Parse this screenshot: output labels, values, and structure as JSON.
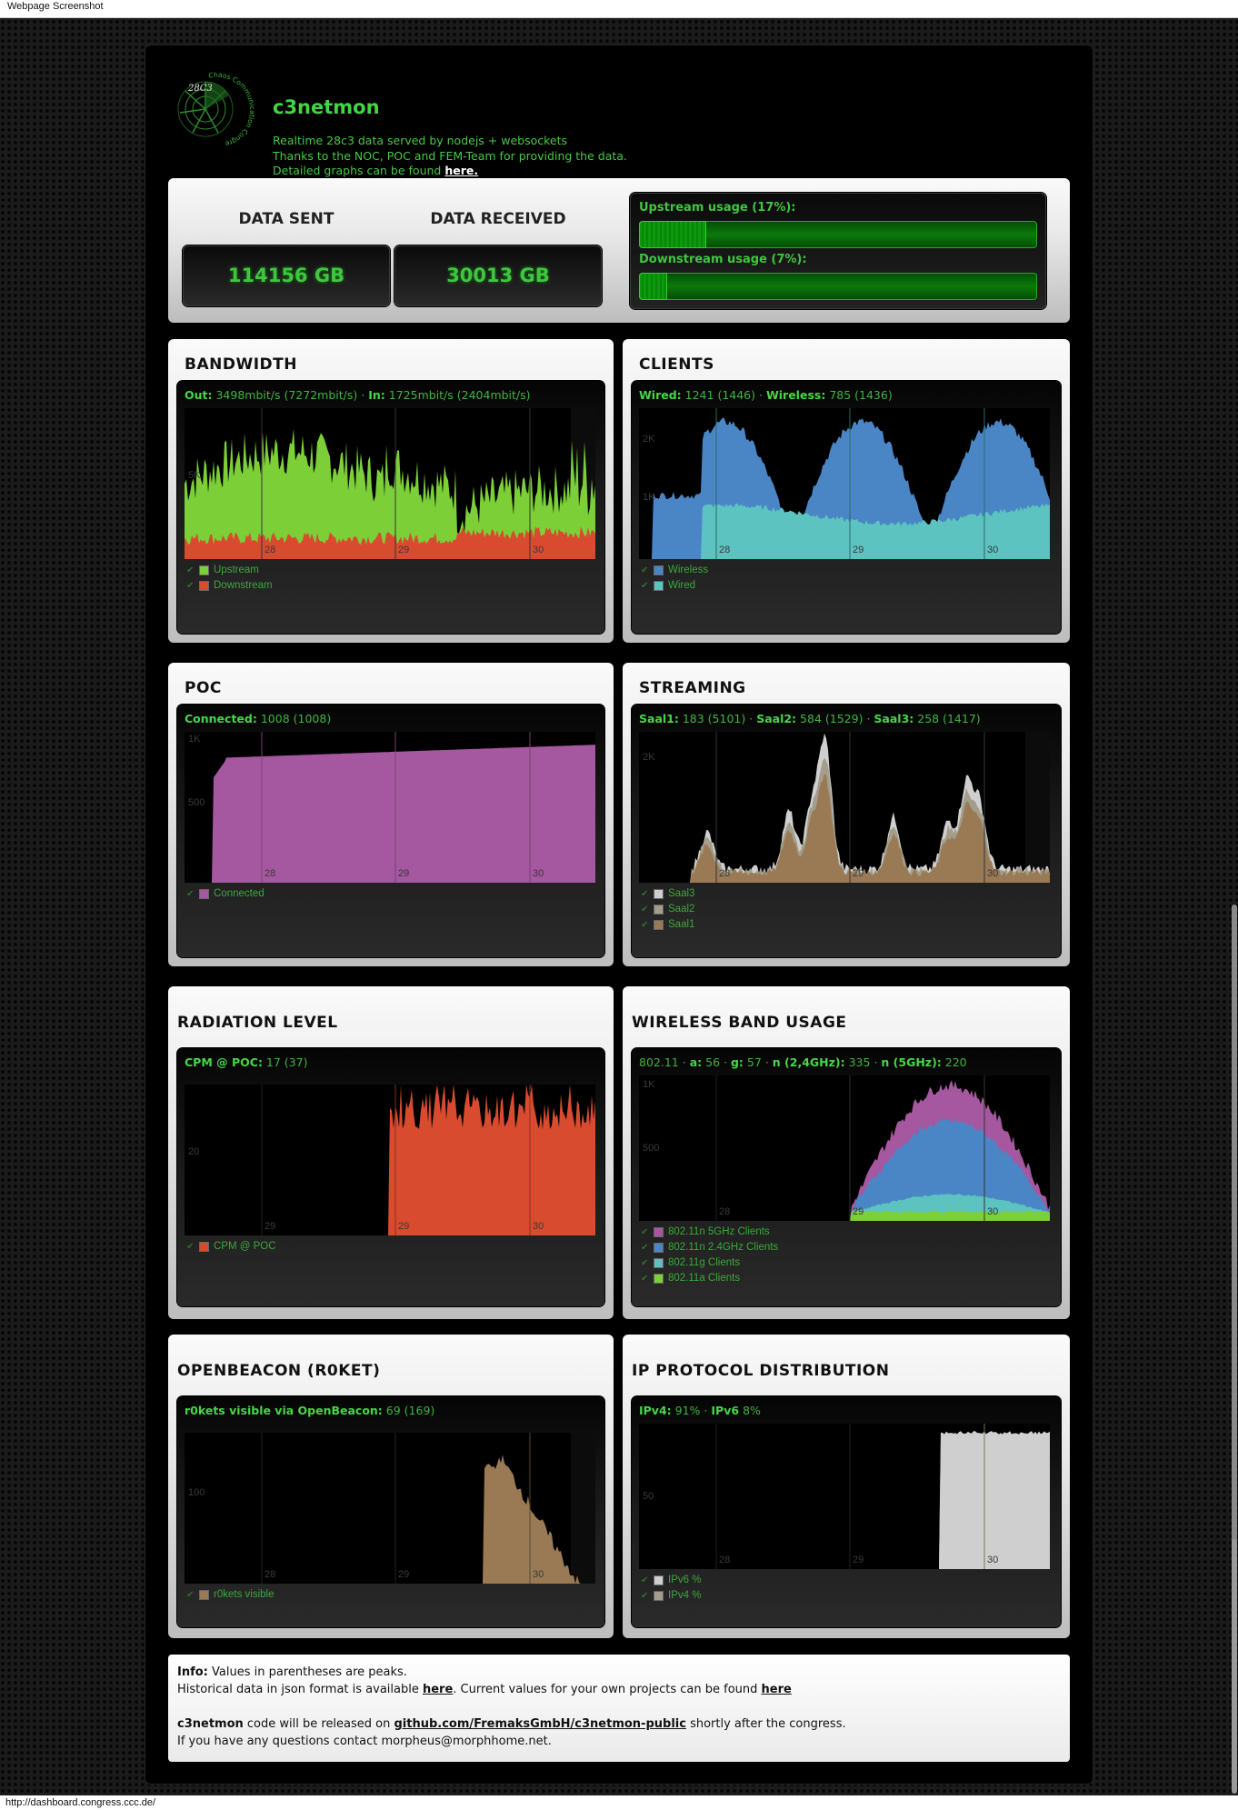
{
  "browser": {
    "top_label": "Webpage Screenshot",
    "status_url": "http://dashboard.congress.ccc.de/"
  },
  "header": {
    "logo_text": "28C3",
    "logo_ring_text": "Chaos Communication Congress behind enemy lines",
    "title": "c3netmon",
    "tagline_line1": "Realtime 28c3 data served by nodejs + websockets",
    "tagline_line2": "Thanks to the NOC, POC and FEM-Team for providing the data.",
    "tagline_line3": "Detailed graphs can be found ",
    "tagline_link": "here."
  },
  "stats": {
    "sent_label": "DATA SENT",
    "sent_value": "114156 GB",
    "received_label": "DATA RECEIVED",
    "received_value": "30013 GB",
    "upstream_label": "Upstream usage (17%):",
    "upstream_pct": 17,
    "downstream_label": "Downstream usage (7%):",
    "downstream_pct": 7
  },
  "panels": {
    "bandwidth": {
      "title": "BANDWIDTH",
      "k1": "Out:",
      "v1": "3498mbit/s (7272mbit/s)",
      "sep": "·",
      "k2": "In:",
      "v2": "1725mbit/s (2404mbit/s)",
      "y_tick": "5K",
      "x_ticks": [
        "28",
        "29",
        "30"
      ],
      "legend": [
        {
          "name": "Upstream",
          "color": "#7ccf37"
        },
        {
          "name": "Downstream",
          "color": "#d84b2f"
        }
      ]
    },
    "clients": {
      "title": "CLIENTS",
      "k1": "Wired:",
      "v1": "1241 (1446)",
      "sep": "·",
      "k2": "Wireless:",
      "v2": "785 (1436)",
      "y_ticks": [
        "2K",
        "1K"
      ],
      "x_ticks": [
        "28",
        "29",
        "30"
      ],
      "legend": [
        {
          "name": "Wireless",
          "color": "#4a86c6"
        },
        {
          "name": "Wired",
          "color": "#5cc3c0"
        }
      ]
    },
    "poc": {
      "title": "POC",
      "k1": "Connected:",
      "v1": "1008 (1008)",
      "y_ticks": [
        "1K",
        "500"
      ],
      "x_ticks": [
        "28",
        "29",
        "30"
      ],
      "legend": [
        {
          "name": "Connected",
          "color": "#a557a0"
        }
      ]
    },
    "streaming": {
      "title": "STREAMING",
      "k1": "Saal1:",
      "v1": "183 (5101)",
      "k2": "Saal2:",
      "v2": "584 (1529)",
      "k3": "Saal3:",
      "v3": "258 (1417)",
      "sep": "·",
      "y_tick": "2K",
      "x_ticks": [
        "28",
        "29",
        "30"
      ],
      "legend": [
        {
          "name": "Saal3",
          "color": "#cfcfcf"
        },
        {
          "name": "Saal2",
          "color": "#a29e8b"
        },
        {
          "name": "Saal1",
          "color": "#9a7a55"
        }
      ]
    },
    "radiation": {
      "title": "RADIATION LEVEL",
      "k1": "CPM @ POC:",
      "v1": "17 (37)",
      "y_tick": "20",
      "x_ticks": [
        "29",
        "29",
        "30"
      ],
      "legend": [
        {
          "name": "CPM @ POC",
          "color": "#d84b2f"
        }
      ]
    },
    "wireless": {
      "title": "WIRELESS BAND USAGE",
      "prefix": "802.11",
      "sep": "·",
      "k1": "a:",
      "v1": "56",
      "k2": "g:",
      "v2": "57",
      "k3": "n (2,4GHz):",
      "v3": "335",
      "k4": "n (5GHz):",
      "v4": "220",
      "y_ticks": [
        "1K",
        "500"
      ],
      "x_ticks": [
        "28",
        "29",
        "30"
      ],
      "legend": [
        {
          "name": "802.11n 5GHz Clients",
          "color": "#a557a0"
        },
        {
          "name": "802.11n 2.4GHz Clients",
          "color": "#4a86c6"
        },
        {
          "name": "802.11g Clients",
          "color": "#5cc3c0"
        },
        {
          "name": "802.11a Clients",
          "color": "#7ccf37"
        }
      ]
    },
    "openbeacon": {
      "title": "OPENBEACON (R0KET)",
      "k1": "r0kets visible via OpenBeacon:",
      "v1": "69 (169)",
      "y_tick": "100",
      "x_ticks": [
        "28",
        "29",
        "30"
      ],
      "legend": [
        {
          "name": "r0kets visible",
          "color": "#9a7a55"
        }
      ]
    },
    "ipproto": {
      "title": "IP PROTOCOL DISTRIBUTION",
      "k1": "IPv4:",
      "v1": "91%",
      "sep": "·",
      "k2": "IPv6",
      "v2": "8%",
      "y_tick": "50",
      "x_ticks": [
        "28",
        "29",
        "30"
      ],
      "legend": [
        {
          "name": "IPv6 %",
          "color": "#cfcfcf"
        },
        {
          "name": "IPv4 %",
          "color": "#a29e8b"
        }
      ]
    }
  },
  "info": {
    "l1_bold": "Info:",
    "l1_text": " Values in parentheses are peaks.",
    "l2_text": "Historical data in json format is available ",
    "l2_link1": "here",
    "l2_mid": ". Current values for your own projects can be found ",
    "l2_link2": "here",
    "l3_bold": "c3netmon",
    "l3_text": " code will be released on ",
    "l3_link": "github.com/FremaksGmbH/c3netmon-public",
    "l3_tail": " shortly after the congress.",
    "l4_text": "If you have any questions contact morpheus@morphhome.net."
  }
}
